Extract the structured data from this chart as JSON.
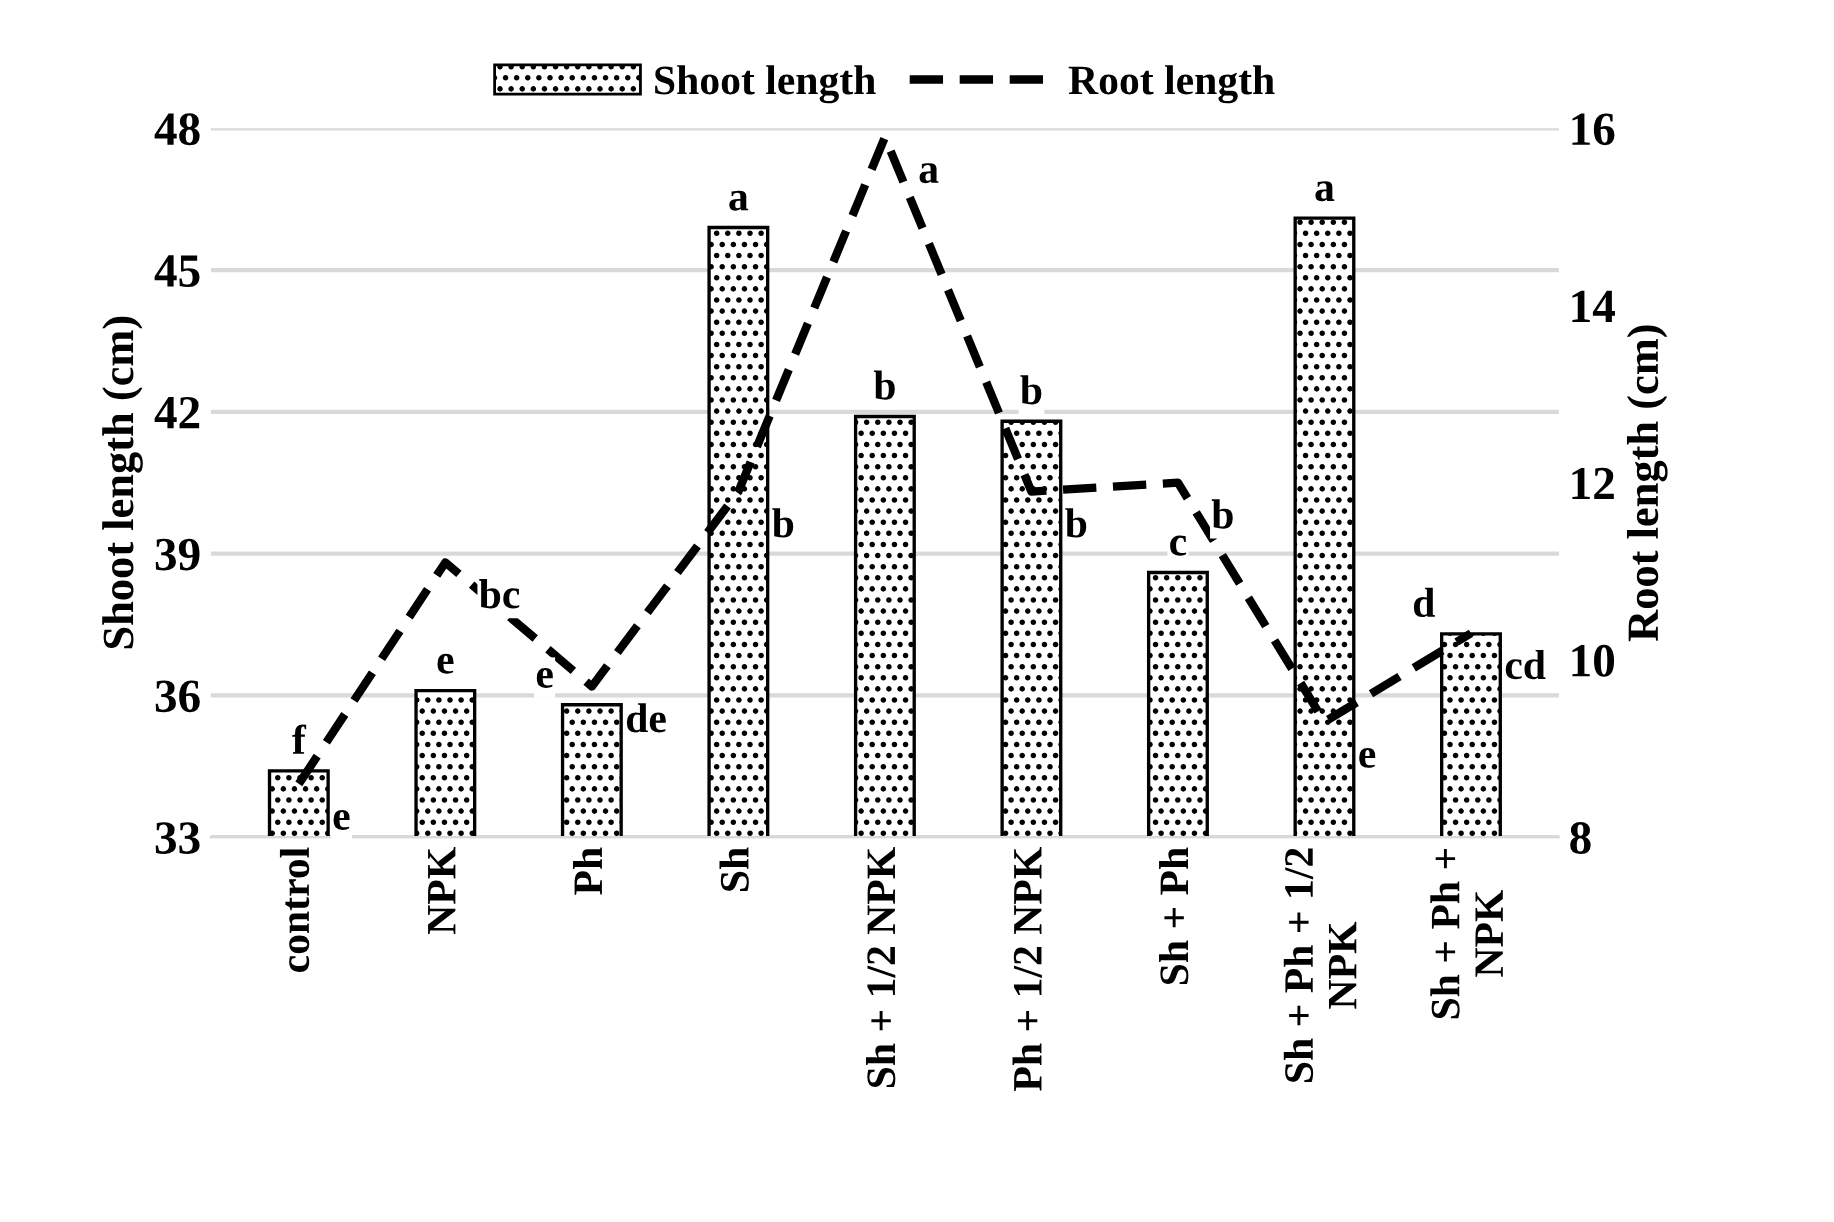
{
  "chart_data": {
    "type": "bar",
    "categories": [
      "control",
      "NPK",
      "Ph",
      "Sh",
      "Sh + 1/2 NPK",
      "Ph + 1/2 NPK",
      "Sh + Ph",
      "Sh + Ph + 1/2\nNPK",
      "Sh + Ph +\nNPK"
    ],
    "series": [
      {
        "name": "Shoot length",
        "color": "#000000",
        "values": [
          34.4,
          36.1,
          35.8,
          45.9,
          41.9,
          41.8,
          38.6,
          46.1,
          37.3
        ],
        "value_labels": [
          "f",
          "e",
          "e",
          "a",
          "b",
          "b",
          "c",
          "a",
          "d"
        ]
      },
      {
        "name": "Root length",
        "type": "line",
        "axis": "y2",
        "color": "#000000",
        "line_style": "dashed",
        "marker": "none",
        "values": [
          8.6,
          11.1,
          9.7,
          11.9,
          15.9,
          11.9,
          12.0,
          9.3,
          10.3
        ],
        "value_labels": [
          "e",
          "bc",
          "de",
          "b",
          "a",
          "b",
          "b",
          "e",
          "cd"
        ]
      }
    ],
    "ylabel": "Shoot length (cm)",
    "y2label": "Root length (cm)",
    "ylim": [
      33,
      48
    ],
    "yticks": [
      33,
      36,
      39,
      42,
      45,
      48
    ],
    "y2lim": [
      8,
      16
    ],
    "y2ticks": [
      8,
      10,
      12,
      14,
      16
    ],
    "grid": "y",
    "legend": "top"
  }
}
